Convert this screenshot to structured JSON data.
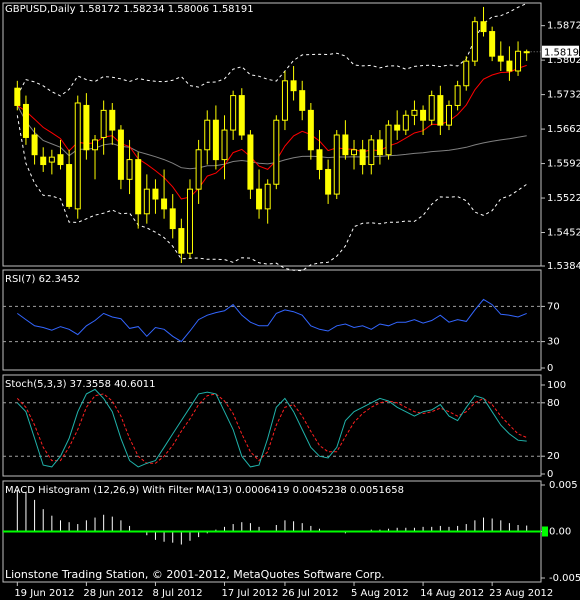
{
  "header": {
    "symbol": "GBPUSD,Daily",
    "ohlc": "1.58172 1.58234 1.58006 1.58191",
    "current_price": "1.58191"
  },
  "footer": {
    "copyright": "Lionstone Trading Station, © 2001-2012, MetaQuotes Software Corp."
  },
  "colors": {
    "background": "#000000",
    "grid_border": "#c0c0c0",
    "candle": "#ffff00",
    "bollinger": "#ffffff",
    "ema_red": "#ff0000",
    "ma_gray": "#808080",
    "rsi": "#3366ff",
    "stoch_main": "#20b2aa",
    "stoch_signal": "#ff2020",
    "macd_hist": "#ffffff",
    "macd_filter": "#00ff00"
  },
  "chart_data": [
    {
      "type": "candlestick",
      "title": "GBPUSD,Daily",
      "ylim": [
        1.5384,
        1.5918
      ],
      "y_ticks": [
        "1.58720",
        "1.58020",
        "1.57320",
        "1.56620",
        "1.55920",
        "1.55220",
        "1.54520",
        "1.53840"
      ],
      "x_ticks": [
        "19 Jun 2012",
        "28 Jun 2012",
        "8 Jul 2012",
        "17 Jul 2012",
        "26 Jul 2012",
        "5 Aug 2012",
        "14 Aug 2012",
        "23 Aug 2012"
      ],
      "candles": [
        [
          1.5745,
          1.576,
          1.57,
          1.571
        ],
        [
          1.5712,
          1.573,
          1.563,
          1.5645
        ],
        [
          1.565,
          1.5665,
          1.559,
          1.561
        ],
        [
          1.5605,
          1.5625,
          1.5575,
          1.559
        ],
        [
          1.5595,
          1.562,
          1.557,
          1.5605
        ],
        [
          1.561,
          1.564,
          1.558,
          1.559
        ],
        [
          1.559,
          1.562,
          1.55,
          1.5505
        ],
        [
          1.55,
          1.573,
          1.548,
          1.5715
        ],
        [
          1.571,
          1.5735,
          1.56,
          1.562
        ],
        [
          1.562,
          1.565,
          1.556,
          1.564
        ],
        [
          1.5645,
          1.572,
          1.561,
          1.57
        ],
        [
          1.57,
          1.5715,
          1.563,
          1.566
        ],
        [
          1.566,
          1.567,
          1.554,
          1.556
        ],
        [
          1.556,
          1.564,
          1.553,
          1.56
        ],
        [
          1.56,
          1.5615,
          1.546,
          1.549
        ],
        [
          1.549,
          1.557,
          1.547,
          1.554
        ],
        [
          1.554,
          1.556,
          1.549,
          1.552
        ],
        [
          1.552,
          1.558,
          1.548,
          1.55
        ],
        [
          1.55,
          1.553,
          1.544,
          1.546
        ],
        [
          1.546,
          1.548,
          1.539,
          1.541
        ],
        [
          1.541,
          1.556,
          1.54,
          1.554
        ],
        [
          1.554,
          1.564,
          1.551,
          1.562
        ],
        [
          1.562,
          1.57,
          1.559,
          1.568
        ],
        [
          1.568,
          1.571,
          1.558,
          1.56
        ],
        [
          1.56,
          1.569,
          1.556,
          1.566
        ],
        [
          1.566,
          1.574,
          1.564,
          1.573
        ],
        [
          1.573,
          1.5745,
          1.564,
          1.565
        ],
        [
          1.565,
          1.566,
          1.552,
          1.554
        ],
        [
          1.554,
          1.558,
          1.548,
          1.55
        ],
        [
          1.55,
          1.556,
          1.547,
          1.555
        ],
        [
          1.555,
          1.569,
          1.554,
          1.568
        ],
        [
          1.568,
          1.578,
          1.566,
          1.576
        ],
        [
          1.576,
          1.579,
          1.572,
          1.574
        ],
        [
          1.574,
          1.576,
          1.568,
          1.57
        ],
        [
          1.57,
          1.5715,
          1.56,
          1.562
        ],
        [
          1.562,
          1.566,
          1.556,
          1.558
        ],
        [
          1.558,
          1.56,
          1.551,
          1.553
        ],
        [
          1.553,
          1.566,
          1.552,
          1.565
        ],
        [
          1.565,
          1.568,
          1.56,
          1.561
        ],
        [
          1.561,
          1.564,
          1.558,
          1.562
        ],
        [
          1.562,
          1.564,
          1.557,
          1.559
        ],
        [
          1.559,
          1.565,
          1.557,
          1.564
        ],
        [
          1.564,
          1.566,
          1.559,
          1.561
        ],
        [
          1.561,
          1.568,
          1.56,
          1.567
        ],
        [
          1.567,
          1.57,
          1.564,
          1.566
        ],
        [
          1.566,
          1.57,
          1.565,
          1.569
        ],
        [
          1.569,
          1.572,
          1.567,
          1.57
        ],
        [
          1.57,
          1.571,
          1.565,
          1.568
        ],
        [
          1.568,
          1.574,
          1.567,
          1.573
        ],
        [
          1.573,
          1.575,
          1.565,
          1.567
        ],
        [
          1.567,
          1.572,
          1.566,
          1.571
        ],
        [
          1.571,
          1.576,
          1.57,
          1.575
        ],
        [
          1.575,
          1.581,
          1.574,
          1.58
        ],
        [
          1.58,
          1.589,
          1.579,
          1.588
        ],
        [
          1.588,
          1.591,
          1.585,
          1.586
        ],
        [
          1.586,
          1.587,
          1.58,
          1.581
        ],
        [
          1.581,
          1.584,
          1.578,
          1.58
        ],
        [
          1.58,
          1.583,
          1.576,
          1.578
        ],
        [
          1.578,
          1.584,
          1.577,
          1.582
        ],
        [
          1.58172,
          1.58234,
          1.58006,
          1.58191
        ]
      ],
      "current_price": 1.58191
    },
    {
      "type": "line",
      "title": "RSI(7) 62.3452",
      "ylim": [
        0,
        100
      ],
      "levels": [
        70,
        30
      ],
      "y_ticks": [
        "70",
        "30",
        "0"
      ],
      "values": [
        62,
        55,
        48,
        46,
        43,
        47,
        44,
        38,
        48,
        54,
        62,
        58,
        56,
        45,
        47,
        36,
        46,
        44,
        36,
        30,
        42,
        55,
        60,
        63,
        65,
        72,
        60,
        52,
        48,
        48,
        62,
        66,
        64,
        60,
        48,
        44,
        42,
        48,
        50,
        46,
        48,
        44,
        50,
        48,
        52,
        52,
        55,
        51,
        54,
        60,
        52,
        55,
        53,
        66,
        78,
        72,
        61,
        60,
        58,
        62
      ]
    },
    {
      "type": "line",
      "title": "Stoch(5,3,3) 37.3558 40.6011",
      "ylim": [
        0,
        100
      ],
      "levels": [
        80,
        20
      ],
      "y_ticks": [
        "100",
        "80",
        "20",
        "0"
      ],
      "series": [
        {
          "name": "main",
          "values": [
            80,
            70,
            40,
            10,
            8,
            20,
            40,
            70,
            90,
            95,
            85,
            70,
            40,
            15,
            8,
            12,
            15,
            30,
            45,
            60,
            75,
            90,
            92,
            90,
            70,
            50,
            20,
            8,
            10,
            40,
            75,
            85,
            70,
            50,
            30,
            20,
            18,
            30,
            60,
            70,
            75,
            80,
            85,
            82,
            75,
            70,
            65,
            70,
            72,
            78,
            65,
            60,
            75,
            88,
            85,
            70,
            55,
            45,
            38,
            37
          ]
        },
        {
          "name": "signal",
          "values": [
            85,
            75,
            55,
            30,
            15,
            15,
            30,
            50,
            75,
            88,
            90,
            82,
            65,
            40,
            20,
            12,
            12,
            20,
            32,
            48,
            62,
            78,
            88,
            90,
            82,
            68,
            45,
            25,
            15,
            25,
            55,
            75,
            78,
            65,
            48,
            32,
            25,
            25,
            42,
            58,
            68,
            75,
            80,
            82,
            80,
            75,
            70,
            68,
            70,
            74,
            70,
            65,
            70,
            80,
            85,
            78,
            65,
            55,
            45,
            41
          ]
        }
      ]
    },
    {
      "type": "bar",
      "title": "MACD Histogram (12,26,9) With Filter MA(13) 0.0006419 0.0045238 0.0051658",
      "ylim": [
        -0.005,
        0.005
      ],
      "y_ticks": [
        "0.005",
        "0.00",
        "-0.005"
      ],
      "values": [
        0.0045,
        0.0042,
        0.0034,
        0.0024,
        0.0017,
        0.0012,
        0.001,
        0.0008,
        0.0012,
        0.0015,
        0.0018,
        0.0016,
        0.0012,
        0.0006,
        0.0001,
        -0.0004,
        -0.0009,
        -0.0011,
        -0.0012,
        -0.0014,
        -0.001,
        -0.0006,
        -0.0002,
        0.0002,
        0.0005,
        0.0008,
        0.001,
        0.0009,
        0.0005,
        0.0001,
        0.0007,
        0.0012,
        0.0011,
        0.0009,
        0.0006,
        0.0003,
        0.0001,
        -0.0001,
        -0.0002,
        -0.0001,
        0.0001,
        0.0002,
        0.0002,
        0.0003,
        0.0004,
        0.0004,
        0.0004,
        0.0005,
        0.0005,
        0.0006,
        0.0005,
        0.0006,
        0.0008,
        0.0012,
        0.0015,
        0.0014,
        0.0012,
        0.0009,
        0.0007,
        0.00064
      ],
      "filter_value": 0.0
    }
  ]
}
